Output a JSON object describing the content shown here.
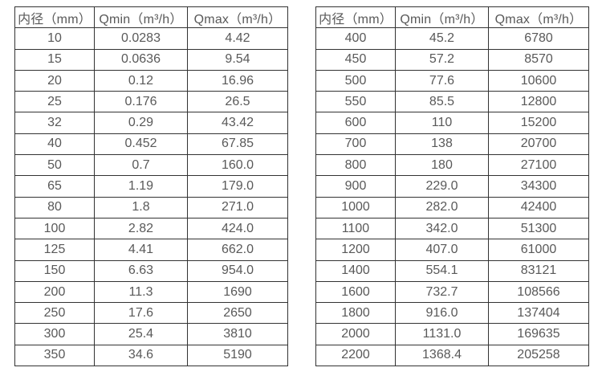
{
  "tables": [
    {
      "name": "flow-rate-table-small-diameters",
      "headers": [
        "内径（mm）",
        "Qmin（m³/h）",
        "Qmax（m³/h）"
      ],
      "rows": [
        [
          "10",
          "0.0283",
          "4.42"
        ],
        [
          "15",
          "0.0636",
          "9.54"
        ],
        [
          "20",
          "0.12",
          "16.96"
        ],
        [
          "25",
          "0.176",
          "26.5"
        ],
        [
          "32",
          "0.29",
          "43.42"
        ],
        [
          "40",
          "0.452",
          "67.85"
        ],
        [
          "50",
          "0.7",
          "160.0"
        ],
        [
          "65",
          "1.19",
          "179.0"
        ],
        [
          "80",
          "1.8",
          "271.0"
        ],
        [
          "100",
          "2.82",
          "424.0"
        ],
        [
          "125",
          "4.41",
          "662.0"
        ],
        [
          "150",
          "6.63",
          "954.0"
        ],
        [
          "200",
          "11.3",
          "1690"
        ],
        [
          "250",
          "17.6",
          "2650"
        ],
        [
          "300",
          "25.4",
          "3810"
        ],
        [
          "350",
          "34.6",
          "5190"
        ]
      ]
    },
    {
      "name": "flow-rate-table-large-diameters",
      "headers": [
        "内径（mm）",
        "Qmin（m³/h）",
        "Qmax（m³/h）"
      ],
      "rows": [
        [
          "400",
          "45.2",
          "6780"
        ],
        [
          "450",
          "57.2",
          "8570"
        ],
        [
          "500",
          "77.6",
          "10600"
        ],
        [
          "550",
          "85.5",
          "12800"
        ],
        [
          "600",
          "110",
          "15200"
        ],
        [
          "700",
          "138",
          "20700"
        ],
        [
          "800",
          "180",
          "27100"
        ],
        [
          "900",
          "229.0",
          "34300"
        ],
        [
          "1000",
          "282.0",
          "42400"
        ],
        [
          "1100",
          "342.0",
          "51300"
        ],
        [
          "1200",
          "407.0",
          "61000"
        ],
        [
          "1400",
          "554.1",
          "83121"
        ],
        [
          "1600",
          "732.7",
          "108566"
        ],
        [
          "1800",
          "916.0",
          "137404"
        ],
        [
          "2000",
          "1131.0",
          "169635"
        ],
        [
          "2200",
          "1368.4",
          "205258"
        ]
      ]
    }
  ],
  "colors": {
    "border": "#333333",
    "text": "#595959",
    "background": "#ffffff"
  }
}
